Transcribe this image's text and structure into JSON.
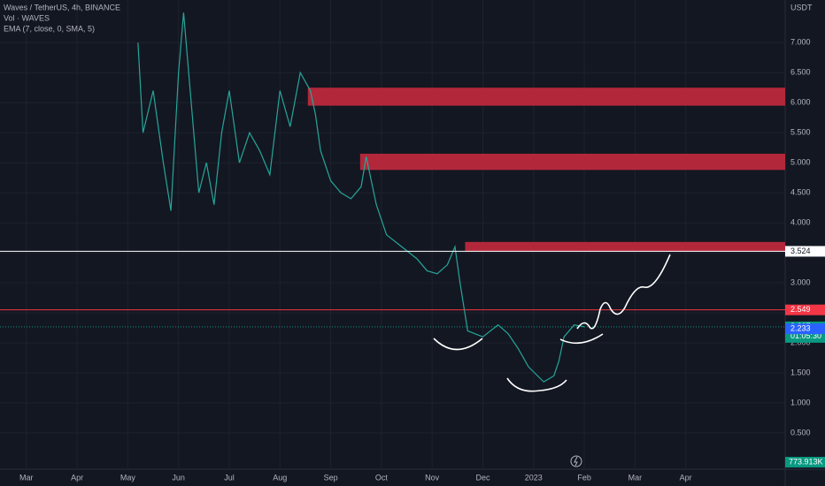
{
  "chart_data": {
    "type": "line",
    "title": "Waves / TetherUS, 4h, BINANCE",
    "indicators": [
      "Vol · WAVES",
      "EMA (7, close, 0, SMA, 5)"
    ],
    "y_axis_label": "USDT",
    "xlim": [
      -0.52,
      14.96
    ],
    "xticks": [
      {
        "value": 0,
        "label": "Mar"
      },
      {
        "value": 1,
        "label": "Apr"
      },
      {
        "value": 2,
        "label": "May"
      },
      {
        "value": 3,
        "label": "Jun"
      },
      {
        "value": 4,
        "label": "Jul"
      },
      {
        "value": 5,
        "label": "Aug"
      },
      {
        "value": 6,
        "label": "Sep"
      },
      {
        "value": 7,
        "label": "Oct"
      },
      {
        "value": 8,
        "label": "Nov"
      },
      {
        "value": 9,
        "label": "Dec"
      },
      {
        "value": 10,
        "label": "2023"
      },
      {
        "value": 11,
        "label": "Feb"
      },
      {
        "value": 12,
        "label": "Mar"
      },
      {
        "value": 13,
        "label": "Apr"
      }
    ],
    "ylim": [
      -0.09,
      7.71
    ],
    "yticks": [
      {
        "value": 0.5,
        "label": "0.500"
      },
      {
        "value": 1,
        "label": "1.000"
      },
      {
        "value": 1.5,
        "label": "1.500"
      },
      {
        "value": 2,
        "label": "2.000"
      },
      {
        "value": 2.5,
        "label": "2.500"
      },
      {
        "value": 3,
        "label": "3.000"
      },
      {
        "value": 3.5,
        "label": "3.500"
      },
      {
        "value": 4,
        "label": "4.000"
      },
      {
        "value": 4.5,
        "label": "4.500"
      },
      {
        "value": 5,
        "label": "5.000"
      },
      {
        "value": 5.5,
        "label": "5.500"
      },
      {
        "value": 6,
        "label": "6.000"
      },
      {
        "value": 6.5,
        "label": "6.500"
      },
      {
        "value": 7,
        "label": "7.000"
      }
    ],
    "series": [
      {
        "name": "Waves / TetherUS",
        "color": "#26a69a",
        "x": [
          2.2,
          2.3,
          2.5,
          2.7,
          2.85,
          3.0,
          3.1,
          3.2,
          3.4,
          3.55,
          3.7,
          3.85,
          4.0,
          4.2,
          4.4,
          4.6,
          4.8,
          5.0,
          5.2,
          5.4,
          5.6,
          5.7,
          5.8,
          6.0,
          6.2,
          6.4,
          6.6,
          6.7,
          6.9,
          7.1,
          7.4,
          7.7,
          7.9,
          8.1,
          8.3,
          8.45,
          8.55,
          8.7,
          9.0,
          9.3,
          9.5,
          9.7,
          9.9,
          10.2,
          10.4,
          10.5,
          10.6,
          10.8,
          11.0
        ],
        "values": [
          7.0,
          5.5,
          6.2,
          5.0,
          4.2,
          6.5,
          7.5,
          6.5,
          4.5,
          5.0,
          4.3,
          5.5,
          6.2,
          5.0,
          5.5,
          5.2,
          4.8,
          6.2,
          5.6,
          6.5,
          6.2,
          5.8,
          5.2,
          4.7,
          4.5,
          4.4,
          4.6,
          5.1,
          4.3,
          3.8,
          3.6,
          3.4,
          3.2,
          3.15,
          3.3,
          3.6,
          3.0,
          2.2,
          2.1,
          2.3,
          2.15,
          1.9,
          1.6,
          1.35,
          1.45,
          1.7,
          2.1,
          2.3,
          2.267
        ]
      }
    ],
    "zones": [
      {
        "start": 5.55,
        "from": 5.95,
        "to": 6.25,
        "color": "#b2283a"
      },
      {
        "start": 6.58,
        "from": 4.88,
        "to": 5.15,
        "color": "#b2283a"
      },
      {
        "start": 8.65,
        "from": 3.52,
        "to": 3.68,
        "color": "#b2283a"
      }
    ],
    "hlines": [
      {
        "value": 3.524,
        "color": "#ffffff"
      },
      {
        "value": 2.549,
        "color": "#f23645"
      }
    ],
    "last_price": {
      "value": 2.267,
      "countdown": "01:05:30",
      "color": "#089981"
    },
    "ema_value": {
      "value": 2.233,
      "color": "#2962ff"
    },
    "volume_label": "773.913K"
  }
}
